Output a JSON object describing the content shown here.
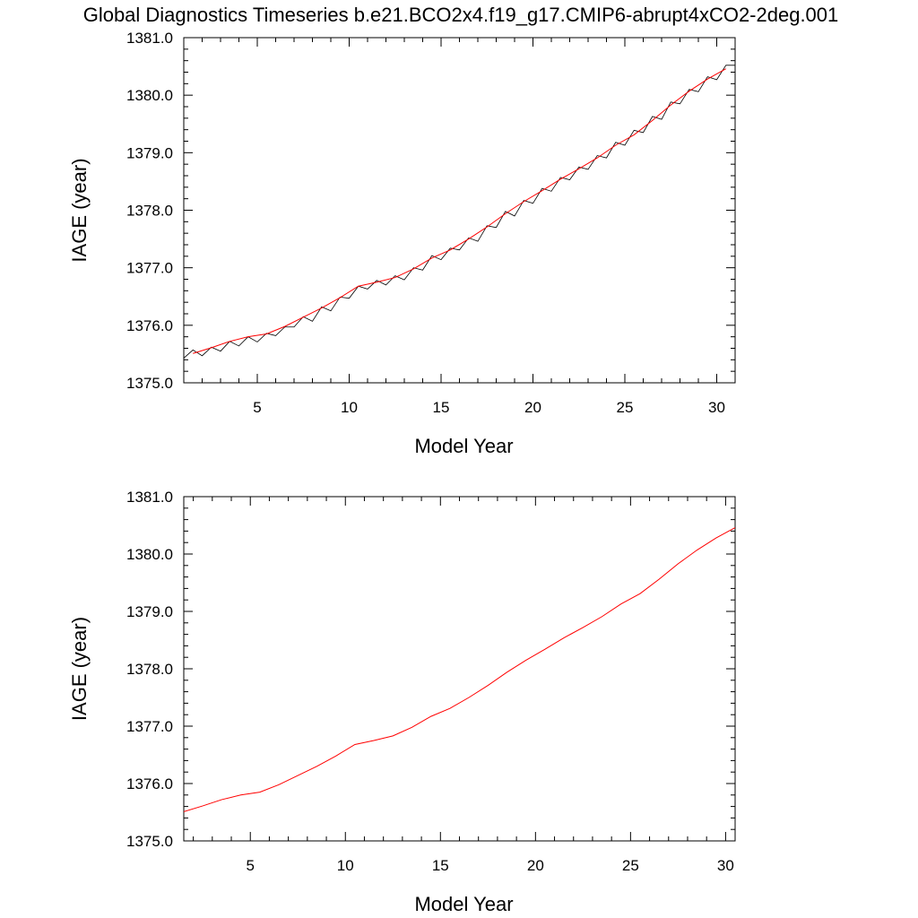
{
  "figure": {
    "title": "Global Diagnostics Timeseries b.e21.BCO2x4.f19_g17.CMIP6-abrupt4xCO2-2deg.001"
  },
  "chart_data": [
    {
      "type": "line",
      "xlabel": "Model Year",
      "ylabel": "IAGE (year)",
      "xlim": [
        1,
        31
      ],
      "ylim": [
        1375.0,
        1381.0
      ],
      "x_ticks": [
        5,
        10,
        15,
        20,
        25,
        30
      ],
      "x_tick_labels": [
        "5",
        "10",
        "15",
        "20",
        "25",
        "30"
      ],
      "y_ticks": [
        1375.0,
        1376.0,
        1377.0,
        1378.0,
        1379.0,
        1380.0,
        1381.0
      ],
      "y_tick_labels": [
        "1375.0",
        "1376.0",
        "1377.0",
        "1378.0",
        "1379.0",
        "1380.0",
        "1381.0"
      ],
      "grid": false,
      "series": [
        {
          "kind": "monthly",
          "color": "#000000",
          "x": [
            1.0,
            1.5,
            2.0,
            2.5,
            3.0,
            3.5,
            4.0,
            4.5,
            5.0,
            5.5,
            6.0,
            6.5,
            7.0,
            7.5,
            8.0,
            8.5,
            9.0,
            9.5,
            10.0,
            10.5,
            11.0,
            11.5,
            12.0,
            12.5,
            13.0,
            13.5,
            14.0,
            14.5,
            15.0,
            15.5,
            16.0,
            16.5,
            17.0,
            17.5,
            18.0,
            18.5,
            19.0,
            19.5,
            20.0,
            20.5,
            21.0,
            21.5,
            22.0,
            22.5,
            23.0,
            23.5,
            24.0,
            24.5,
            25.0,
            25.5,
            26.0,
            26.5,
            27.0,
            27.5,
            28.0,
            28.5,
            29.0,
            29.5,
            30.0,
            30.5,
            31.0
          ],
          "y": [
            1375.43,
            1375.57,
            1375.47,
            1375.62,
            1375.55,
            1375.72,
            1375.64,
            1375.8,
            1375.71,
            1375.86,
            1375.82,
            1375.97,
            1375.97,
            1376.15,
            1376.07,
            1376.32,
            1376.25,
            1376.49,
            1376.47,
            1376.68,
            1376.63,
            1376.78,
            1376.7,
            1376.86,
            1376.79,
            1377.0,
            1376.96,
            1377.21,
            1377.14,
            1377.34,
            1377.31,
            1377.52,
            1377.46,
            1377.73,
            1377.7,
            1377.98,
            1377.9,
            1378.17,
            1378.12,
            1378.38,
            1378.33,
            1378.57,
            1378.53,
            1378.75,
            1378.71,
            1378.95,
            1378.91,
            1379.18,
            1379.13,
            1379.39,
            1379.35,
            1379.63,
            1379.58,
            1379.88,
            1379.85,
            1380.1,
            1380.06,
            1380.32,
            1380.27,
            1380.52,
            1380.52
          ]
        },
        {
          "kind": "annual",
          "color": "#ff0000",
          "x": [
            1.5,
            2.5,
            3.5,
            4.5,
            5.5,
            6.5,
            7.5,
            8.5,
            9.5,
            10.5,
            11.5,
            12.5,
            13.5,
            14.5,
            15.5,
            16.5,
            17.5,
            18.5,
            19.5,
            20.5,
            21.5,
            22.5,
            23.5,
            24.5,
            25.5,
            26.5,
            27.5,
            28.5,
            29.5,
            30.5
          ],
          "y": [
            1375.51,
            1375.61,
            1375.72,
            1375.8,
            1375.85,
            1375.98,
            1376.14,
            1376.3,
            1376.48,
            1376.68,
            1376.75,
            1376.83,
            1376.98,
            1377.17,
            1377.31,
            1377.5,
            1377.71,
            1377.94,
            1378.15,
            1378.34,
            1378.54,
            1378.72,
            1378.91,
            1379.13,
            1379.31,
            1379.56,
            1379.83,
            1380.07,
            1380.28,
            1380.46
          ]
        }
      ]
    },
    {
      "type": "line",
      "xlabel": "Model Year",
      "ylabel": "IAGE (year)",
      "xlim": [
        1.5,
        30.5
      ],
      "ylim": [
        1375.0,
        1381.0
      ],
      "x_ticks": [
        5,
        10,
        15,
        20,
        25,
        30
      ],
      "x_tick_labels": [
        "5",
        "10",
        "15",
        "20",
        "25",
        "30"
      ],
      "y_ticks": [
        1375.0,
        1376.0,
        1377.0,
        1378.0,
        1379.0,
        1380.0,
        1381.0
      ],
      "y_tick_labels": [
        "1375.0",
        "1376.0",
        "1377.0",
        "1378.0",
        "1379.0",
        "1380.0",
        "1381.0"
      ],
      "grid": false,
      "series": [
        {
          "kind": "annual",
          "color": "#ff0000",
          "x": [
            1.5,
            2.5,
            3.5,
            4.5,
            5.5,
            6.5,
            7.5,
            8.5,
            9.5,
            10.5,
            11.5,
            12.5,
            13.5,
            14.5,
            15.5,
            16.5,
            17.5,
            18.5,
            19.5,
            20.5,
            21.5,
            22.5,
            23.5,
            24.5,
            25.5,
            26.5,
            27.5,
            28.5,
            29.5,
            30.5
          ],
          "y": [
            1375.51,
            1375.61,
            1375.72,
            1375.8,
            1375.85,
            1375.98,
            1376.14,
            1376.3,
            1376.48,
            1376.68,
            1376.75,
            1376.83,
            1376.98,
            1377.17,
            1377.31,
            1377.5,
            1377.71,
            1377.94,
            1378.15,
            1378.34,
            1378.54,
            1378.72,
            1378.91,
            1379.13,
            1379.31,
            1379.56,
            1379.83,
            1380.07,
            1380.28,
            1380.46
          ]
        }
      ]
    }
  ]
}
